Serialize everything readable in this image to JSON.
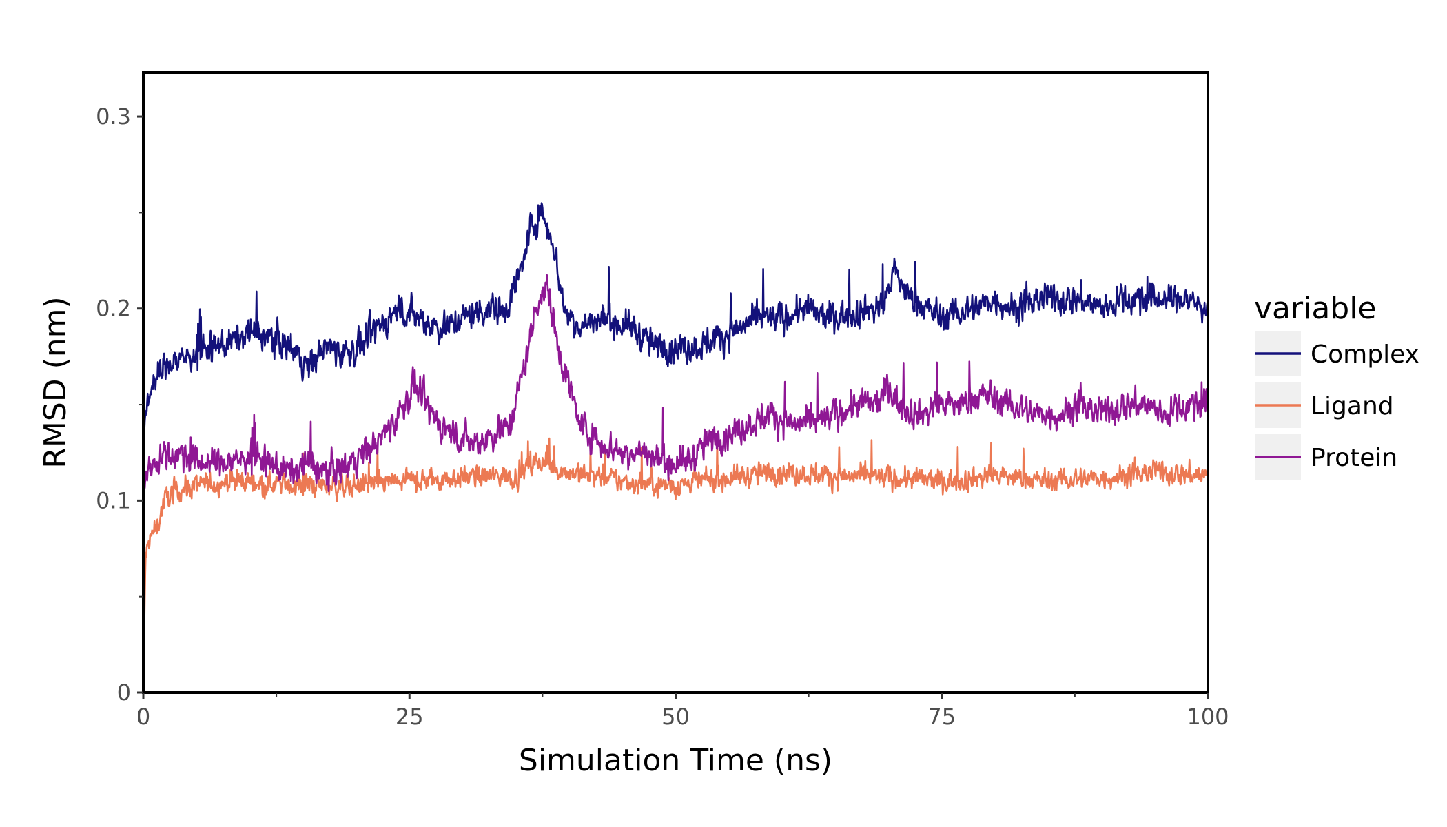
{
  "chart_data": {
    "type": "line",
    "xlabel": "Simulation Time (ns)",
    "ylabel": "RMSD (nm)",
    "xlim": [
      0,
      100
    ],
    "ylim": [
      0,
      0.323
    ],
    "x_ticks": [
      {
        "value": 0,
        "label": "0"
      },
      {
        "value": 25,
        "label": "25"
      },
      {
        "value": 50,
        "label": "50"
      },
      {
        "value": 75,
        "label": "75"
      },
      {
        "value": 100,
        "label": "100"
      }
    ],
    "y_ticks": [
      {
        "value": 0,
        "label": "0"
      },
      {
        "value": 0.1,
        "label": "0.1"
      },
      {
        "value": 0.2,
        "label": "0.2"
      },
      {
        "value": 0.3,
        "label": "0.3"
      }
    ],
    "grid": false,
    "legend": {
      "title": "variable",
      "position": "right"
    },
    "series": [
      {
        "name": "Complex",
        "color": "#13117a",
        "noise": 0.012,
        "x": [
          0,
          0.3,
          0.8,
          2,
          4,
          6,
          8,
          10,
          12,
          14,
          15.5,
          17,
          19,
          20.5,
          22,
          24,
          26,
          28,
          30,
          32,
          34,
          35.5,
          36.5,
          37.5,
          38.5,
          39.5,
          41,
          43,
          46,
          48,
          50,
          52,
          54,
          56,
          58,
          60,
          62,
          64,
          66,
          68,
          69.5,
          70.5,
          72,
          75,
          78,
          80,
          82,
          84,
          86,
          88,
          90,
          92,
          94,
          96,
          98,
          100
        ],
        "y": [
          0.135,
          0.15,
          0.16,
          0.17,
          0.175,
          0.178,
          0.182,
          0.188,
          0.185,
          0.18,
          0.17,
          0.18,
          0.177,
          0.18,
          0.19,
          0.2,
          0.195,
          0.19,
          0.195,
          0.2,
          0.2,
          0.22,
          0.245,
          0.25,
          0.235,
          0.2,
          0.19,
          0.195,
          0.19,
          0.18,
          0.18,
          0.18,
          0.185,
          0.19,
          0.195,
          0.195,
          0.2,
          0.195,
          0.197,
          0.2,
          0.2,
          0.22,
          0.205,
          0.195,
          0.2,
          0.205,
          0.2,
          0.205,
          0.205,
          0.205,
          0.2,
          0.205,
          0.205,
          0.205,
          0.205,
          0.2
        ]
      },
      {
        "name": "Ligand",
        "color": "#ec7953",
        "noise": 0.009,
        "x": [
          0,
          0.2,
          0.6,
          1.2,
          2,
          3,
          5,
          8,
          10,
          15,
          20,
          25,
          30,
          35,
          37,
          40,
          45,
          50,
          55,
          60,
          65,
          70,
          75,
          80,
          85,
          90,
          95,
          100
        ],
        "y": [
          0.0,
          0.07,
          0.08,
          0.085,
          0.1,
          0.105,
          0.108,
          0.11,
          0.11,
          0.108,
          0.108,
          0.11,
          0.112,
          0.113,
          0.12,
          0.115,
          0.11,
          0.108,
          0.112,
          0.115,
          0.113,
          0.112,
          0.11,
          0.113,
          0.11,
          0.112,
          0.115,
          0.113
        ]
      },
      {
        "name": "Protein",
        "color": "#8f1794",
        "noise": 0.012,
        "x": [
          0,
          0.3,
          1,
          3,
          5,
          8,
          10,
          12,
          14,
          15.5,
          17,
          19,
          20.5,
          22,
          24,
          25.5,
          27,
          29,
          31,
          33,
          34.5,
          36,
          37,
          38,
          39,
          41,
          43,
          45,
          47,
          49,
          51,
          53,
          55,
          57,
          59,
          61,
          63,
          65,
          67,
          69,
          70,
          71,
          73,
          75,
          77,
          79,
          81,
          84,
          86,
          88,
          90,
          92,
          94,
          96,
          98,
          100
        ],
        "y": [
          0.105,
          0.115,
          0.12,
          0.125,
          0.12,
          0.12,
          0.123,
          0.118,
          0.115,
          0.12,
          0.115,
          0.118,
          0.125,
          0.13,
          0.145,
          0.16,
          0.145,
          0.135,
          0.13,
          0.135,
          0.14,
          0.175,
          0.205,
          0.21,
          0.18,
          0.14,
          0.13,
          0.125,
          0.125,
          0.12,
          0.12,
          0.13,
          0.135,
          0.14,
          0.145,
          0.14,
          0.14,
          0.145,
          0.15,
          0.15,
          0.16,
          0.15,
          0.145,
          0.15,
          0.15,
          0.155,
          0.15,
          0.145,
          0.145,
          0.15,
          0.145,
          0.15,
          0.15,
          0.145,
          0.15,
          0.15
        ]
      }
    ]
  }
}
